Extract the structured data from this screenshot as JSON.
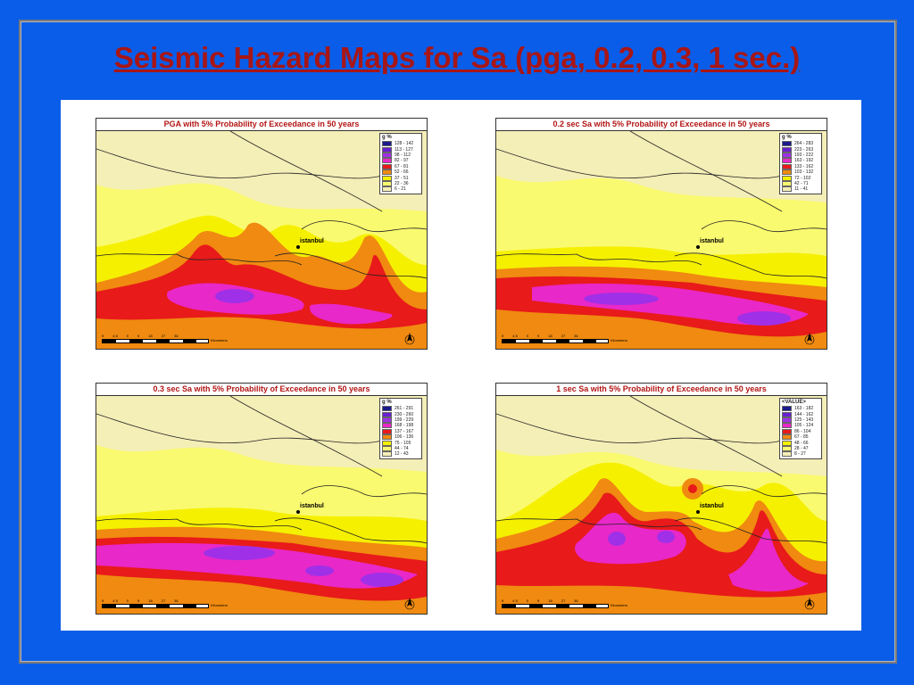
{
  "slide": {
    "title": "Seismic Hazard Maps for Sa (pga, 0.2, 0.3, 1 sec.)",
    "colors": {
      "background": "#0a5de8",
      "title": "#a81616"
    }
  },
  "maps": [
    {
      "title": "PGA with 5% Probability of Exceedance in 50 years",
      "legend_title": "g %",
      "legend": [
        "128 - 142",
        "113 - 127",
        "98 - 112",
        "82 - 97",
        "67 - 81",
        "52 - 66",
        "37 - 51",
        "22 - 36",
        "6 - 21"
      ],
      "city": "istanbul",
      "scale_ticks": [
        "9",
        "4.5",
        "0",
        "9",
        "18",
        "27",
        "36"
      ],
      "scale_unit": "Kilometers"
    },
    {
      "title": "0.2 sec Sa with 5% Probability of Exceedance in 50 years",
      "legend_title": "g %",
      "legend": [
        "264 - 283",
        "223 - 263",
        "193 - 222",
        "163 - 192",
        "133 - 162",
        "103 - 132",
        "72 - 102",
        "42 - 71",
        "11 - 41"
      ],
      "city": "istanbul",
      "scale_ticks": [
        "9",
        "4.5",
        "0",
        "9",
        "18",
        "27",
        "36"
      ],
      "scale_unit": "Kilometers"
    },
    {
      "title": "0.3 sec Sa with 5% Probability of Exceedance in 50 years",
      "legend_title": "g %",
      "legend": [
        "261 - 291",
        "230 - 260",
        "199 - 229",
        "168 - 198",
        "137 - 167",
        "106 - 136",
        "75 - 105",
        "44 - 74",
        "12 - 43"
      ],
      "city": "istanbul",
      "scale_ticks": [
        "9",
        "4.5",
        "0",
        "9",
        "18",
        "27",
        "36"
      ],
      "scale_unit": "Kilometers"
    },
    {
      "title": "1 sec Sa with 5% Probability of Exceedance in 50 years",
      "legend_title": "<VALUE>",
      "legend": [
        "163 - 182",
        "144 - 162",
        "125 - 143",
        "105 - 124",
        "86 - 104",
        "67 - 85",
        "48 - 66",
        "28 - 47",
        "8 - 27"
      ],
      "city": "istanbul",
      "scale_ticks": [
        "9",
        "4.5",
        "0",
        "9",
        "18",
        "27",
        "36"
      ],
      "scale_unit": "Kilometers"
    }
  ],
  "legend_colors": [
    "#1a1a8c",
    "#6a1fd0",
    "#a030e8",
    "#e828c8",
    "#e81a1a",
    "#f08a10",
    "#f5f000",
    "#fafa70",
    "#f4eeb7"
  ]
}
